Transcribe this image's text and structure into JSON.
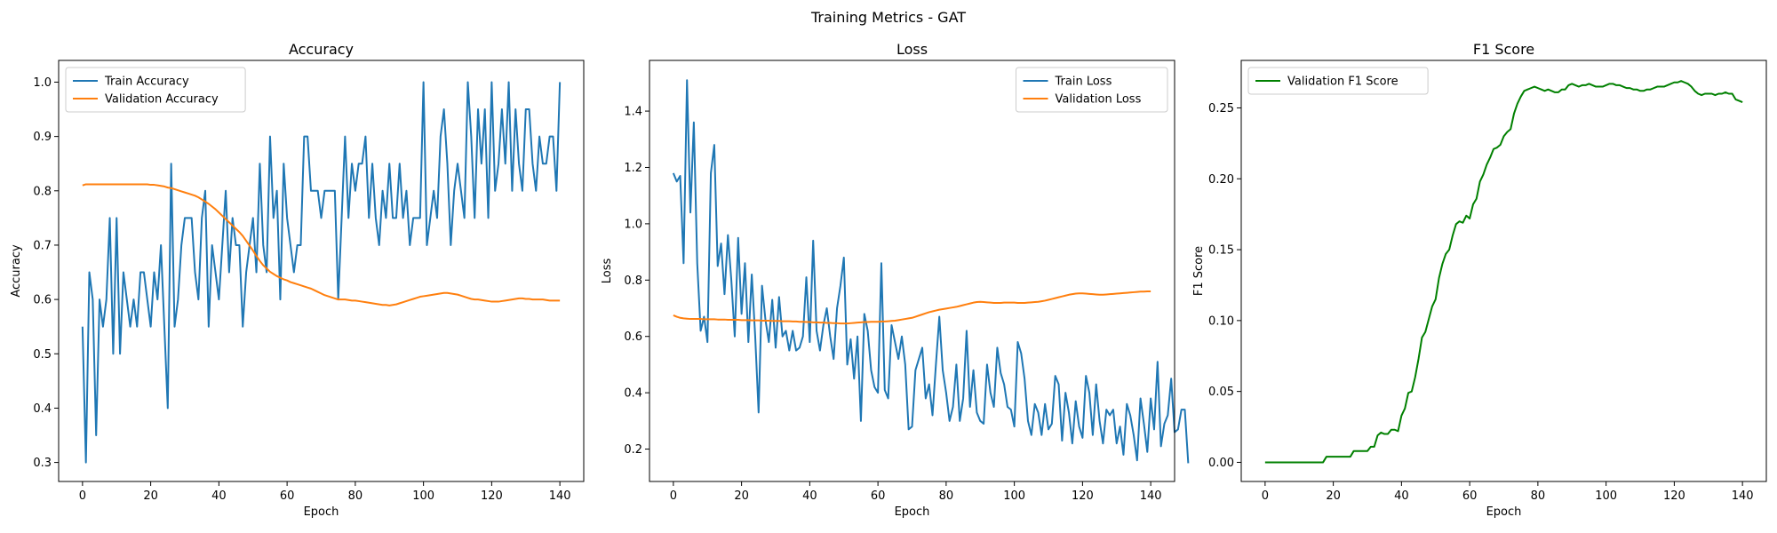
{
  "figure": {
    "suptitle": "Training Metrics - GAT"
  },
  "chart_data": [
    {
      "type": "line",
      "title": "Accuracy",
      "xlabel": "Epoch",
      "ylabel": "Accuracy",
      "xlim": [
        -7,
        147
      ],
      "ylim": [
        0.265,
        1.04
      ],
      "xticks": [
        0,
        20,
        40,
        60,
        80,
        100,
        120,
        140
      ],
      "yticks": [
        0.3,
        0.4,
        0.5,
        0.6,
        0.7,
        0.8,
        0.9,
        1.0
      ],
      "ytick_labels": [
        "0.3",
        "0.4",
        "0.5",
        "0.6",
        "0.7",
        "0.8",
        "0.9",
        "1.0"
      ],
      "grid": false,
      "legend_position": "upper-left",
      "series": [
        {
          "name": "Train Accuracy",
          "color": "#1f77b4",
          "values": [
            0.55,
            0.3,
            0.65,
            0.6,
            0.35,
            0.6,
            0.55,
            0.6,
            0.75,
            0.5,
            0.75,
            0.5,
            0.65,
            0.6,
            0.55,
            0.6,
            0.55,
            0.65,
            0.65,
            0.6,
            0.55,
            0.65,
            0.6,
            0.7,
            0.55,
            0.4,
            0.85,
            0.55,
            0.6,
            0.7,
            0.75,
            0.75,
            0.75,
            0.65,
            0.6,
            0.75,
            0.8,
            0.55,
            0.7,
            0.65,
            0.6,
            0.7,
            0.8,
            0.65,
            0.75,
            0.7,
            0.7,
            0.55,
            0.65,
            0.7,
            0.75,
            0.65,
            0.85,
            0.7,
            0.65,
            0.9,
            0.75,
            0.8,
            0.6,
            0.85,
            0.75,
            0.7,
            0.65,
            0.7,
            0.7,
            0.9,
            0.9,
            0.8,
            0.8,
            0.8,
            0.75,
            0.8,
            0.8,
            0.8,
            0.8,
            0.6,
            0.75,
            0.9,
            0.75,
            0.85,
            0.8,
            0.85,
            0.85,
            0.9,
            0.75,
            0.85,
            0.75,
            0.7,
            0.8,
            0.75,
            0.85,
            0.75,
            0.75,
            0.85,
            0.75,
            0.8,
            0.7,
            0.75,
            0.75,
            0.75,
            1.0,
            0.7,
            0.75,
            0.8,
            0.75,
            0.9,
            0.95,
            0.85,
            0.7,
            0.8,
            0.85,
            0.8,
            0.75,
            1.0,
            0.9,
            0.75,
            0.95,
            0.85,
            0.95,
            0.75,
            1.0,
            0.8,
            0.85,
            0.95,
            0.85,
            1.0,
            0.8,
            0.95,
            0.85,
            0.8,
            0.95,
            0.95,
            0.85,
            0.8,
            0.9,
            0.85,
            0.85,
            0.9,
            0.9,
            0.8,
            1.0
          ]
        },
        {
          "name": "Validation Accuracy",
          "color": "#ff7f0e",
          "values": [
            0.81,
            0.812,
            0.812,
            0.812,
            0.812,
            0.812,
            0.812,
            0.812,
            0.812,
            0.812,
            0.812,
            0.812,
            0.812,
            0.812,
            0.812,
            0.812,
            0.812,
            0.812,
            0.812,
            0.812,
            0.811,
            0.811,
            0.81,
            0.809,
            0.808,
            0.806,
            0.805,
            0.803,
            0.801,
            0.799,
            0.797,
            0.795,
            0.793,
            0.791,
            0.788,
            0.784,
            0.78,
            0.776,
            0.771,
            0.766,
            0.76,
            0.754,
            0.748,
            0.742,
            0.736,
            0.73,
            0.724,
            0.717,
            0.708,
            0.699,
            0.69,
            0.68,
            0.671,
            0.663,
            0.657,
            0.651,
            0.647,
            0.643,
            0.64,
            0.637,
            0.635,
            0.632,
            0.63,
            0.628,
            0.626,
            0.624,
            0.622,
            0.62,
            0.617,
            0.614,
            0.611,
            0.608,
            0.606,
            0.604,
            0.602,
            0.6,
            0.6,
            0.6,
            0.599,
            0.598,
            0.598,
            0.597,
            0.596,
            0.595,
            0.594,
            0.593,
            0.592,
            0.591,
            0.59,
            0.59,
            0.589,
            0.59,
            0.591,
            0.593,
            0.595,
            0.597,
            0.599,
            0.601,
            0.603,
            0.605,
            0.606,
            0.607,
            0.608,
            0.609,
            0.61,
            0.611,
            0.612,
            0.612,
            0.611,
            0.61,
            0.609,
            0.607,
            0.605,
            0.603,
            0.601,
            0.6,
            0.6,
            0.599,
            0.598,
            0.597,
            0.596,
            0.596,
            0.596,
            0.597,
            0.598,
            0.599,
            0.6,
            0.601,
            0.602,
            0.602,
            0.601,
            0.601,
            0.6,
            0.6,
            0.6,
            0.6,
            0.599,
            0.598,
            0.598,
            0.598,
            0.598
          ]
        }
      ]
    },
    {
      "type": "line",
      "title": "Loss",
      "xlabel": "Epoch",
      "ylabel": "Loss",
      "xlim": [
        -7,
        147
      ],
      "ylim": [
        0.085,
        1.58
      ],
      "xticks": [
        0,
        20,
        40,
        60,
        80,
        100,
        120,
        140
      ],
      "yticks": [
        0.2,
        0.4,
        0.6,
        0.8,
        1.0,
        1.2,
        1.4
      ],
      "ytick_labels": [
        "0.2",
        "0.4",
        "0.6",
        "0.8",
        "1.0",
        "1.2",
        "1.4"
      ],
      "grid": false,
      "legend_position": "upper-right",
      "series": [
        {
          "name": "Train Loss",
          "color": "#1f77b4",
          "values": [
            1.18,
            1.15,
            1.17,
            0.86,
            1.51,
            1.04,
            1.36,
            0.86,
            0.62,
            0.67,
            0.58,
            1.18,
            1.28,
            0.85,
            0.93,
            0.75,
            0.96,
            0.8,
            0.6,
            0.95,
            0.68,
            0.86,
            0.58,
            0.82,
            0.6,
            0.33,
            0.78,
            0.66,
            0.58,
            0.73,
            0.56,
            0.74,
            0.6,
            0.62,
            0.55,
            0.62,
            0.55,
            0.56,
            0.6,
            0.81,
            0.58,
            0.94,
            0.62,
            0.55,
            0.64,
            0.7,
            0.6,
            0.52,
            0.7,
            0.78,
            0.88,
            0.5,
            0.59,
            0.45,
            0.6,
            0.3,
            0.68,
            0.62,
            0.48,
            0.42,
            0.4,
            0.86,
            0.41,
            0.38,
            0.64,
            0.58,
            0.52,
            0.6,
            0.5,
            0.27,
            0.28,
            0.48,
            0.52,
            0.56,
            0.38,
            0.43,
            0.32,
            0.5,
            0.67,
            0.48,
            0.4,
            0.3,
            0.35,
            0.5,
            0.3,
            0.38,
            0.62,
            0.35,
            0.48,
            0.33,
            0.3,
            0.29,
            0.5,
            0.4,
            0.35,
            0.56,
            0.47,
            0.43,
            0.35,
            0.34,
            0.28,
            0.58,
            0.54,
            0.45,
            0.3,
            0.25,
            0.36,
            0.33,
            0.25,
            0.36,
            0.27,
            0.29,
            0.46,
            0.43,
            0.23,
            0.4,
            0.33,
            0.22,
            0.37,
            0.28,
            0.24,
            0.46,
            0.4,
            0.25,
            0.43,
            0.3,
            0.22,
            0.34,
            0.32,
            0.34,
            0.22,
            0.28,
            0.18,
            0.36,
            0.32,
            0.25,
            0.16,
            0.38,
            0.29,
            0.19,
            0.38,
            0.27,
            0.51,
            0.21,
            0.29,
            0.32,
            0.45,
            0.26,
            0.27,
            0.34,
            0.34,
            0.15
          ]
        },
        {
          "name": "Validation Loss",
          "color": "#ff7f0e",
          "values": [
            0.675,
            0.67,
            0.666,
            0.664,
            0.663,
            0.662,
            0.662,
            0.662,
            0.662,
            0.661,
            0.661,
            0.661,
            0.661,
            0.66,
            0.66,
            0.66,
            0.659,
            0.659,
            0.659,
            0.659,
            0.658,
            0.658,
            0.658,
            0.657,
            0.657,
            0.657,
            0.656,
            0.656,
            0.656,
            0.655,
            0.655,
            0.655,
            0.654,
            0.654,
            0.654,
            0.653,
            0.653,
            0.652,
            0.652,
            0.651,
            0.651,
            0.65,
            0.65,
            0.649,
            0.649,
            0.648,
            0.648,
            0.647,
            0.647,
            0.646,
            0.646,
            0.646,
            0.647,
            0.648,
            0.649,
            0.65,
            0.651,
            0.651,
            0.652,
            0.652,
            0.652,
            0.653,
            0.653,
            0.654,
            0.655,
            0.656,
            0.658,
            0.66,
            0.662,
            0.664,
            0.666,
            0.67,
            0.674,
            0.678,
            0.682,
            0.686,
            0.689,
            0.692,
            0.695,
            0.697,
            0.699,
            0.701,
            0.703,
            0.705,
            0.708,
            0.711,
            0.714,
            0.717,
            0.72,
            0.722,
            0.723,
            0.722,
            0.721,
            0.72,
            0.719,
            0.719,
            0.719,
            0.72,
            0.72,
            0.72,
            0.72,
            0.719,
            0.719,
            0.719,
            0.72,
            0.721,
            0.722,
            0.723,
            0.725,
            0.727,
            0.73,
            0.733,
            0.736,
            0.739,
            0.742,
            0.745,
            0.748,
            0.75,
            0.752,
            0.753,
            0.753,
            0.752,
            0.751,
            0.75,
            0.749,
            0.748,
            0.748,
            0.749,
            0.75,
            0.751,
            0.752,
            0.753,
            0.754,
            0.755,
            0.756,
            0.757,
            0.758,
            0.759,
            0.759,
            0.76,
            0.76
          ]
        }
      ]
    },
    {
      "type": "line",
      "title": "F1 Score",
      "xlabel": "Epoch",
      "ylabel": "F1 Score",
      "xlim": [
        -7,
        147
      ],
      "ylim": [
        -0.0135,
        0.2835
      ],
      "xticks": [
        0,
        20,
        40,
        60,
        80,
        100,
        120,
        140
      ],
      "yticks": [
        0.0,
        0.05,
        0.1,
        0.15,
        0.2,
        0.25
      ],
      "ytick_labels": [
        "0.00",
        "0.05",
        "0.10",
        "0.15",
        "0.20",
        "0.25"
      ],
      "grid": false,
      "legend_position": "upper-left",
      "series": [
        {
          "name": "Validation F1 Score",
          "color": "#008000",
          "values": [
            0.0,
            0.0,
            0.0,
            0.0,
            0.0,
            0.0,
            0.0,
            0.0,
            0.0,
            0.0,
            0.0,
            0.0,
            0.0,
            0.0,
            0.0,
            0.0,
            0.0,
            0.0,
            0.004,
            0.004,
            0.004,
            0.004,
            0.004,
            0.004,
            0.004,
            0.004,
            0.008,
            0.008,
            0.008,
            0.008,
            0.008,
            0.011,
            0.011,
            0.019,
            0.021,
            0.02,
            0.02,
            0.023,
            0.023,
            0.022,
            0.033,
            0.038,
            0.049,
            0.05,
            0.06,
            0.073,
            0.088,
            0.092,
            0.101,
            0.11,
            0.115,
            0.13,
            0.14,
            0.147,
            0.15,
            0.16,
            0.168,
            0.17,
            0.169,
            0.174,
            0.172,
            0.182,
            0.186,
            0.198,
            0.203,
            0.21,
            0.215,
            0.221,
            0.222,
            0.224,
            0.23,
            0.233,
            0.235,
            0.246,
            0.253,
            0.258,
            0.262,
            0.263,
            0.264,
            0.265,
            0.264,
            0.263,
            0.262,
            0.263,
            0.262,
            0.261,
            0.261,
            0.263,
            0.263,
            0.266,
            0.267,
            0.266,
            0.265,
            0.266,
            0.266,
            0.267,
            0.266,
            0.265,
            0.265,
            0.265,
            0.266,
            0.267,
            0.267,
            0.266,
            0.266,
            0.265,
            0.264,
            0.264,
            0.263,
            0.263,
            0.262,
            0.262,
            0.263,
            0.263,
            0.264,
            0.265,
            0.265,
            0.265,
            0.266,
            0.267,
            0.268,
            0.268,
            0.269,
            0.268,
            0.267,
            0.265,
            0.262,
            0.26,
            0.259,
            0.26,
            0.26,
            0.26,
            0.259,
            0.26,
            0.26,
            0.261,
            0.26,
            0.26,
            0.256,
            0.255,
            0.254
          ]
        }
      ]
    }
  ]
}
